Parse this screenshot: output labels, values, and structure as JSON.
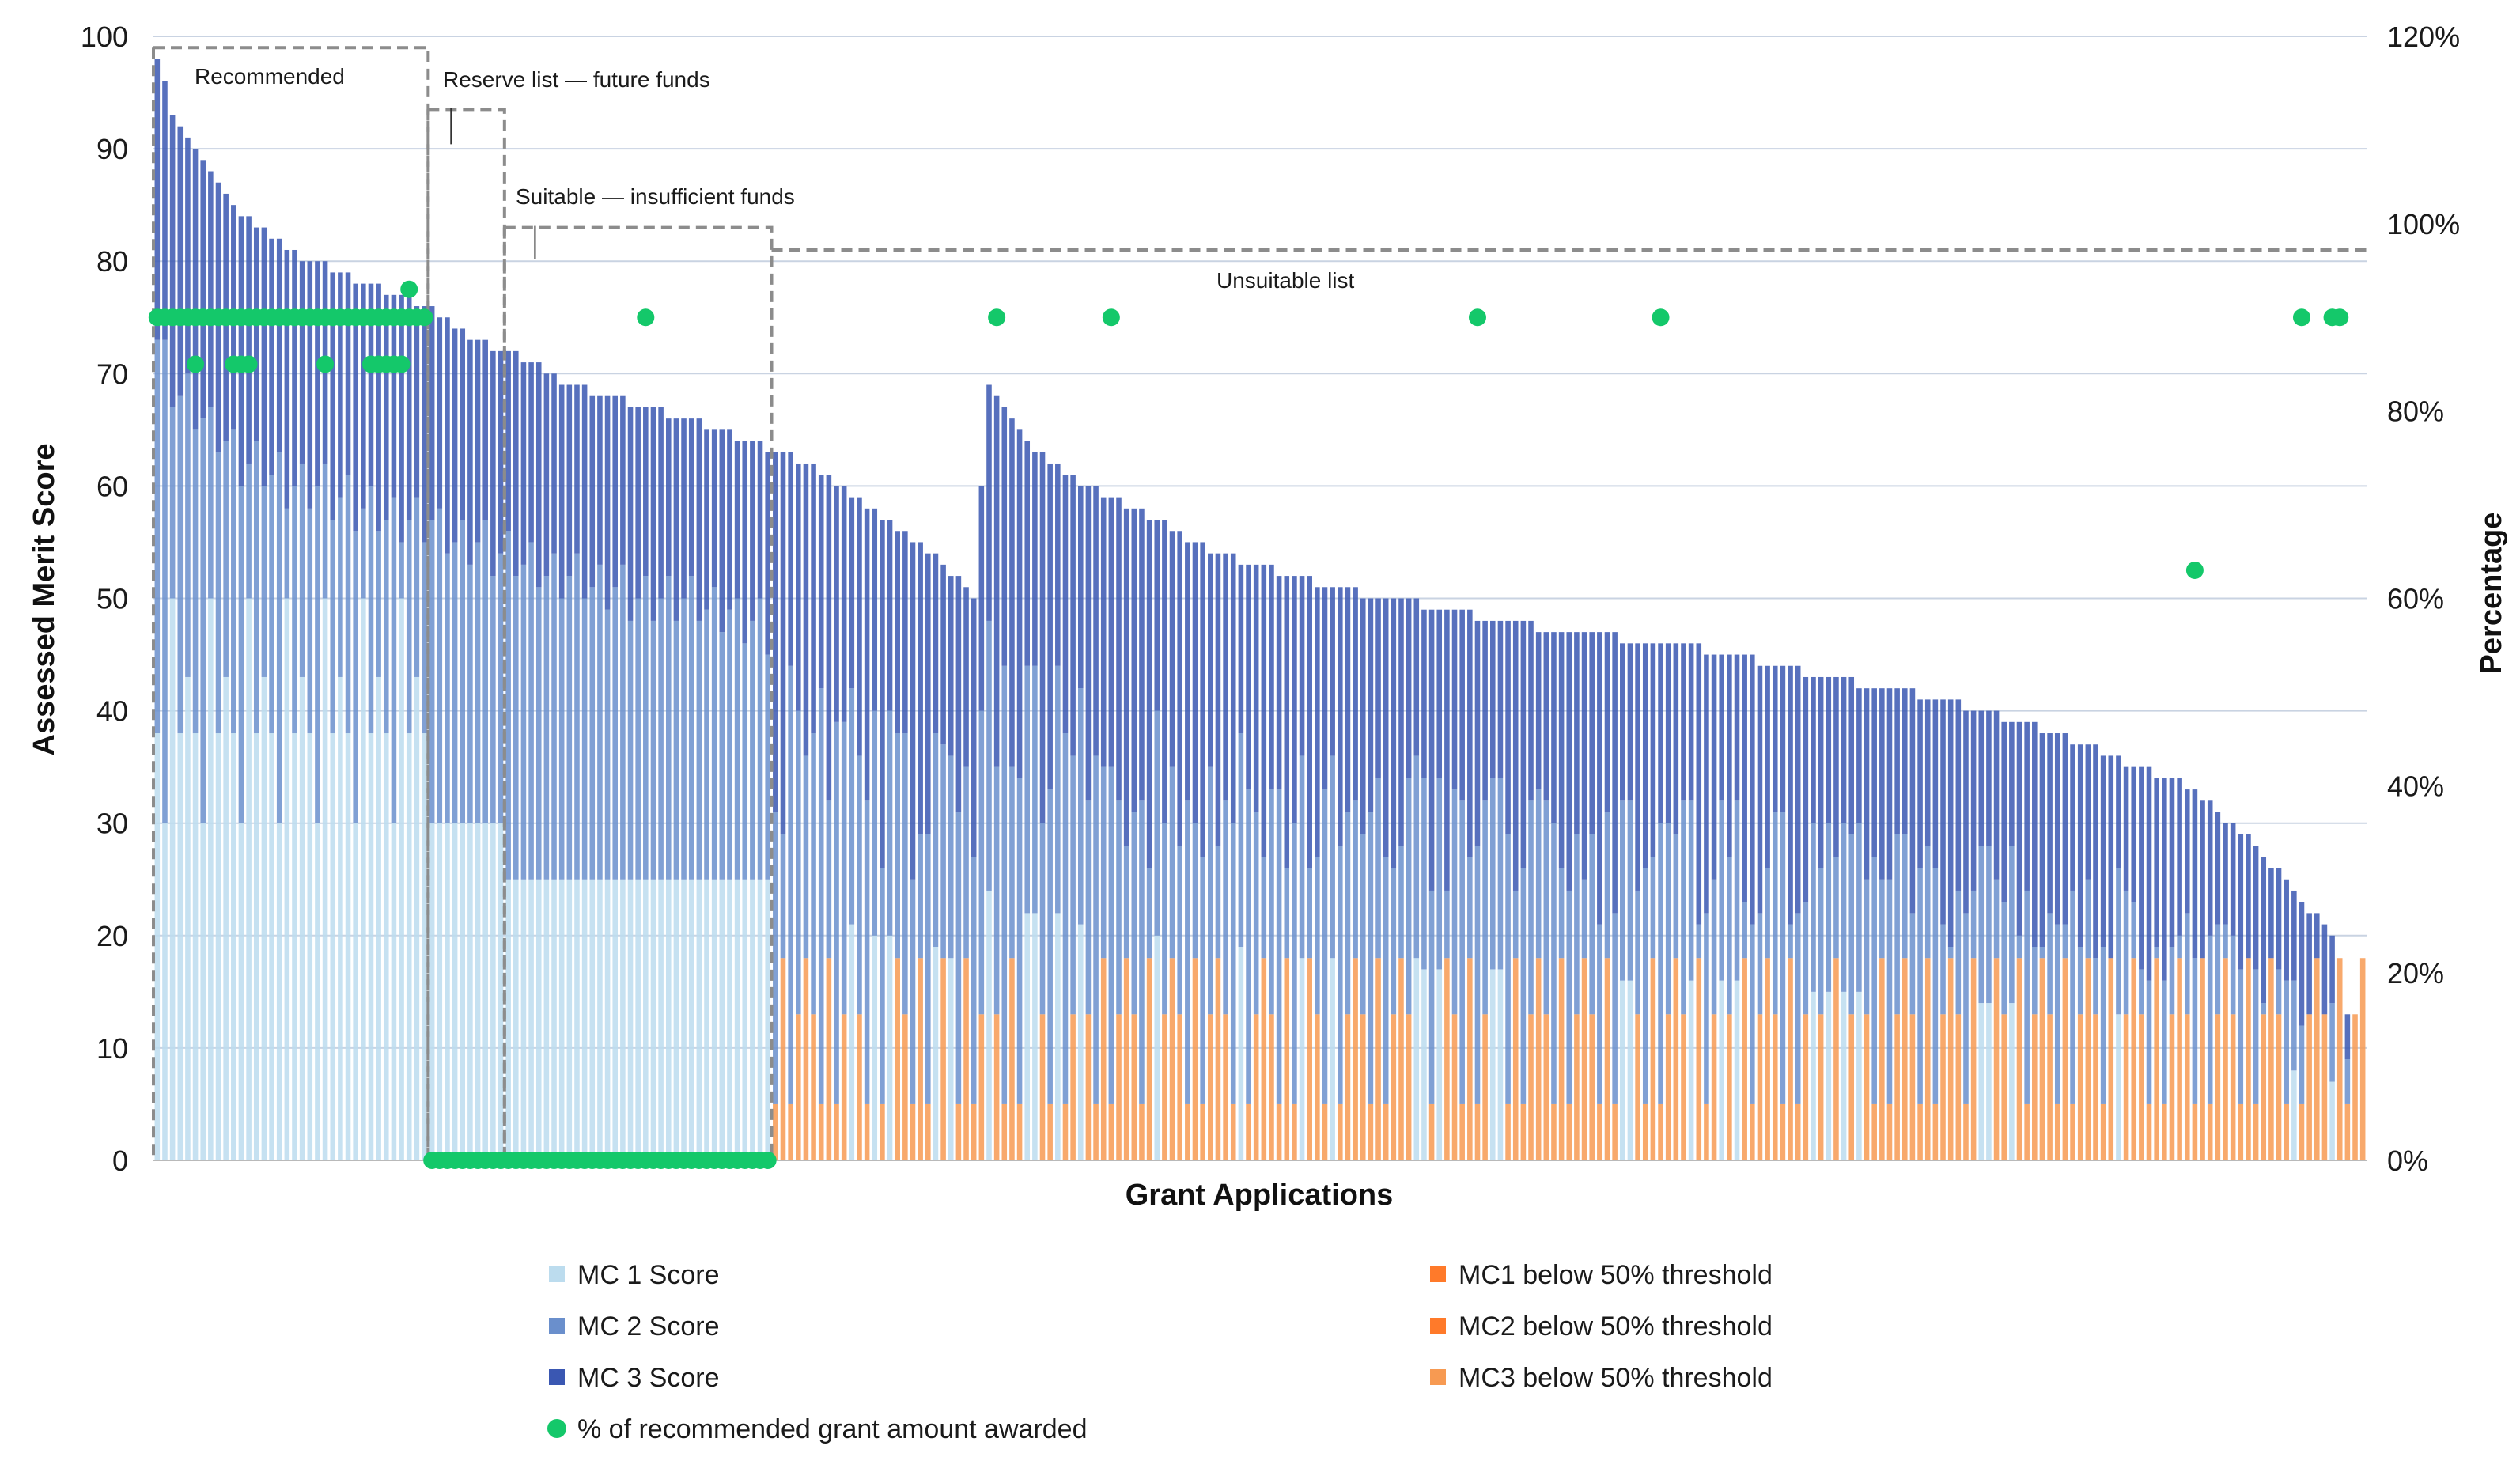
{
  "chart_data": {
    "type": "bar",
    "subtype": "stacked-bar-with-dot-overlay",
    "title": "",
    "xlabel": "Grant Applications",
    "ylabel": "Assessed Merit Score",
    "y2label": "Percentage",
    "ylim": [
      0,
      100
    ],
    "y2lim": [
      0,
      1.2
    ],
    "yticks": [
      "0",
      "10",
      "20",
      "30",
      "40",
      "50",
      "60",
      "70",
      "80",
      "90",
      "100"
    ],
    "y2ticks": [
      "0%",
      "20%",
      "40%",
      "60%",
      "80%",
      "100%",
      "120%"
    ],
    "grid": true,
    "legend_position": "bottom",
    "n_applications": 290,
    "colors": {
      "mc1": "#bcdcee",
      "mc2": "#6a8fcc",
      "mc3": "#3a57b2",
      "mc1_below": "#ff7a2a",
      "mc2_below": "#ff7a2a",
      "mc3_below": "#f79a52",
      "dot": "#14c86a",
      "grid": "#c9d3e2",
      "dashed": "#8c8c8c"
    },
    "series": [
      {
        "key": "mc1",
        "name": "MC 1 Score"
      },
      {
        "key": "mc2",
        "name": "MC 2 Score"
      },
      {
        "key": "mc3",
        "name": "MC 3 Score"
      },
      {
        "key": "mc1_below",
        "name": "MC1 below 50% threshold"
      },
      {
        "key": "mc2_below",
        "name": "MC2 below 50% threshold"
      },
      {
        "key": "mc3_below",
        "name": "MC3 below 50% threshold"
      },
      {
        "key": "dot",
        "name": "% of recommended grant amount awarded"
      }
    ],
    "totals_profile": [
      [
        1,
        98
      ],
      [
        3,
        93
      ],
      [
        8,
        88
      ],
      [
        12,
        84
      ],
      [
        18,
        81
      ],
      [
        25,
        79
      ],
      [
        36,
        76
      ],
      [
        42,
        73
      ],
      [
        50,
        71
      ],
      [
        54,
        69
      ],
      [
        60,
        68
      ],
      [
        70,
        66
      ],
      [
        78,
        64
      ],
      [
        86,
        62
      ],
      [
        95,
        58
      ],
      [
        100,
        55
      ],
      [
        104,
        53
      ],
      [
        108,
        50
      ],
      [
        110,
        69
      ],
      [
        115,
        64
      ],
      [
        120,
        61
      ],
      [
        126,
        59
      ],
      [
        140,
        54
      ],
      [
        155,
        51
      ],
      [
        170,
        49
      ],
      [
        185,
        47
      ],
      [
        200,
        46
      ],
      [
        220,
        43
      ],
      [
        235,
        41
      ],
      [
        250,
        38
      ],
      [
        260,
        35
      ],
      [
        268,
        33
      ],
      [
        272,
        30
      ],
      [
        276,
        28
      ],
      [
        282,
        23
      ],
      [
        286,
        20
      ],
      [
        288,
        13
      ],
      [
        290,
        13
      ]
    ],
    "groups": [
      {
        "label": "Recommended",
        "from": 1,
        "to": 36,
        "box_top": 99
      },
      {
        "label": "Reserve list — future funds",
        "from": 37,
        "to": 46,
        "box_top": 93.5
      },
      {
        "label": "Suitable — insufficient funds",
        "from": 47,
        "to": 81,
        "box_top": 83
      },
      {
        "label": "Unsuitable list",
        "from": 82,
        "to": 290,
        "line_level": 81
      }
    ],
    "dots_pct": [
      {
        "range": [
          1,
          36
        ],
        "value": 0.9
      },
      {
        "range": [
          37,
          81
        ],
        "value": 0.0
      },
      {
        "at": [
          6,
          11,
          12,
          13,
          23,
          29,
          30,
          31,
          32,
          33
        ],
        "value": 0.85
      },
      {
        "at": [
          34
        ],
        "value": 0.93
      },
      {
        "at": [
          65,
          111,
          126,
          174,
          198,
          282,
          286,
          287
        ],
        "value": 0.9
      },
      {
        "at": [
          268
        ],
        "value": 0.63
      }
    ]
  },
  "legend": [
    {
      "key": "mc1",
      "label": "MC 1 Score"
    },
    {
      "key": "mc1_below",
      "label": "MC1 below 50% threshold"
    },
    {
      "key": "mc2",
      "label": "MC 2 Score"
    },
    {
      "key": "mc2_below",
      "label": "MC2 below 50% threshold"
    },
    {
      "key": "mc3",
      "label": "MC 3 Score"
    },
    {
      "key": "mc3_below",
      "label": "MC3 below 50% threshold"
    },
    {
      "key": "dot",
      "label": "% of recommended grant amount awarded"
    }
  ]
}
